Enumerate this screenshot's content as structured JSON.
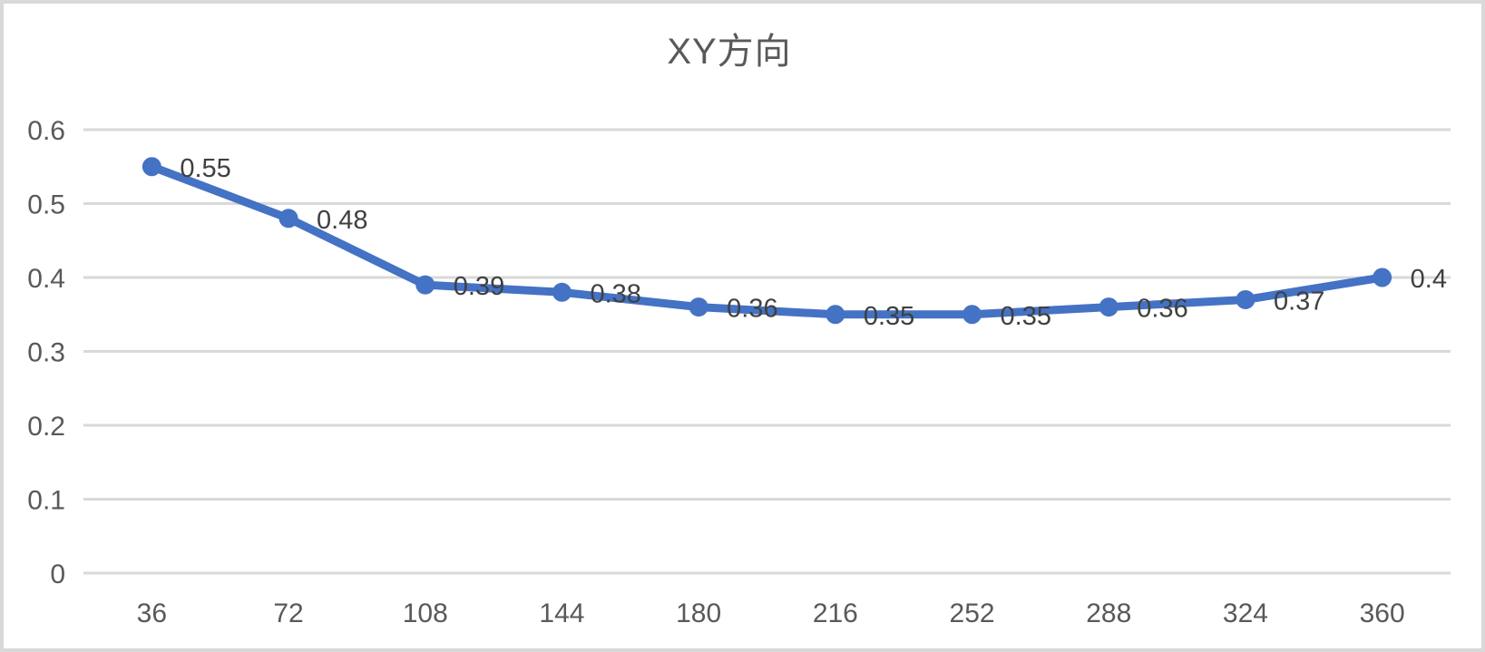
{
  "chart_data": {
    "type": "line",
    "title": "XY方向",
    "categories": [
      36,
      72,
      108,
      144,
      180,
      216,
      252,
      288,
      324,
      360
    ],
    "series": [
      {
        "name": "XY方向",
        "values": [
          0.55,
          0.48,
          0.39,
          0.38,
          0.36,
          0.35,
          0.35,
          0.36,
          0.37,
          0.4
        ]
      }
    ],
    "data_labels": [
      "0.55",
      "0.48",
      "0.39",
      "0.38",
      "0.36",
      "0.35",
      "0.35",
      "0.36",
      "0.37",
      "0.4"
    ],
    "data_label_position": "right",
    "xlabel": "",
    "ylabel": "",
    "ylim": [
      0,
      0.6
    ],
    "y_ticks": {
      "values": [
        0,
        0.1,
        0.2,
        0.3,
        0.4,
        0.5,
        0.6
      ],
      "labels": [
        "0",
        "0.1",
        "0.2",
        "0.3",
        "0.4",
        "0.5",
        "0.6"
      ]
    },
    "x_tick_labels": [
      "36",
      "72",
      "108",
      "144",
      "180",
      "216",
      "252",
      "288",
      "324",
      "360"
    ],
    "grid": "horizontal",
    "legend": "none",
    "marker": "circle",
    "line_style": "solid",
    "colors": {
      "line": "#4472C4",
      "marker": "#4472C4",
      "gridline": "#D9D9D9",
      "tick_label": "#595959",
      "data_label": "#404040",
      "title": "#595959",
      "background": "#FFFFFF",
      "frame_border": "#D9D9D9"
    }
  }
}
